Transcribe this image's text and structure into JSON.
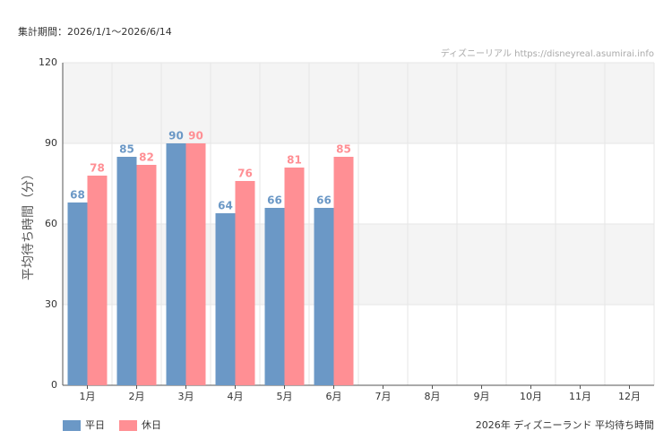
{
  "chart_data": {
    "type": "bar",
    "title": "2026年 ディズニーランド 平均待ち時間",
    "subtitle": "集計期間：2026/1/1〜2026/6/14",
    "watermark": "ディズニーリアル https://disneyreal.asumirai.info",
    "y_label": "平均待ち時間（分）",
    "categories": [
      "1月",
      "2月",
      "3月",
      "4月",
      "5月",
      "6月",
      "7月",
      "8月",
      "9月",
      "10月",
      "11月",
      "12月"
    ],
    "series": [
      {
        "name": "平日",
        "color": "#6b98c6",
        "values": [
          68,
          85,
          90,
          64,
          66,
          66,
          null,
          null,
          null,
          null,
          null,
          null
        ]
      },
      {
        "name": "休日",
        "color": "#ff8f94",
        "values": [
          78,
          82,
          90,
          76,
          81,
          85,
          null,
          null,
          null,
          null,
          null,
          null
        ]
      }
    ],
    "ylim": [
      0,
      120
    ],
    "yticks": [
      0,
      30,
      60,
      90,
      120
    ],
    "grid": true,
    "legend": "bottom-left"
  }
}
